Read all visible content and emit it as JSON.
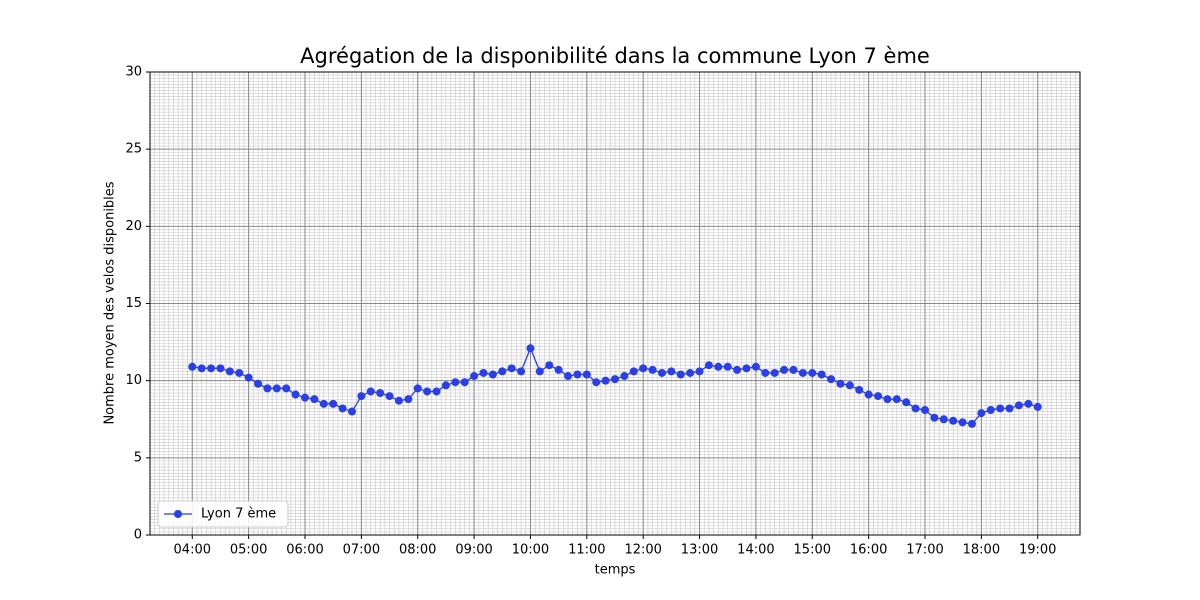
{
  "chart_data": {
    "type": "line",
    "title": "Agrégation de la disponibilité dans la commune Lyon 7 ème",
    "x_label": "temps",
    "y_label": "Nombre moyen des velos disponibles",
    "x": [
      "04:00",
      "04:10",
      "04:20",
      "04:30",
      "04:40",
      "04:50",
      "05:00",
      "05:10",
      "05:20",
      "05:30",
      "05:40",
      "05:50",
      "06:00",
      "06:10",
      "06:20",
      "06:30",
      "06:40",
      "06:50",
      "07:00",
      "07:10",
      "07:20",
      "07:30",
      "07:40",
      "07:50",
      "08:00",
      "08:10",
      "08:20",
      "08:30",
      "08:40",
      "08:50",
      "09:00",
      "09:10",
      "09:20",
      "09:30",
      "09:40",
      "09:50",
      "10:00",
      "10:10",
      "10:20",
      "10:30",
      "10:40",
      "10:50",
      "11:00",
      "11:10",
      "11:20",
      "11:30",
      "11:40",
      "11:50",
      "12:00",
      "12:10",
      "12:20",
      "12:30",
      "12:40",
      "12:50",
      "13:00",
      "13:10",
      "13:20",
      "13:30",
      "13:40",
      "13:50",
      "14:00",
      "14:10",
      "14:20",
      "14:30",
      "14:40",
      "14:50",
      "15:00",
      "15:10",
      "15:20",
      "15:30",
      "15:40",
      "15:50",
      "16:00",
      "16:10",
      "16:20",
      "16:30",
      "16:40",
      "16:50",
      "17:00",
      "17:10",
      "17:20",
      "17:30",
      "17:40",
      "17:50",
      "18:00",
      "18:10",
      "18:20",
      "18:30",
      "18:40",
      "18:50",
      "19:00"
    ],
    "series": [
      {
        "name": "Lyon 7 ème",
        "color": "#2a3fe6",
        "values": [
          10.9,
          10.8,
          10.8,
          10.8,
          10.6,
          10.5,
          10.2,
          9.8,
          9.5,
          9.5,
          9.5,
          9.1,
          8.9,
          8.8,
          8.5,
          8.5,
          8.2,
          8.0,
          9.0,
          9.3,
          9.2,
          9.0,
          8.7,
          8.8,
          9.5,
          9.3,
          9.3,
          9.7,
          9.9,
          9.9,
          10.3,
          10.5,
          10.4,
          10.6,
          10.8,
          10.6,
          12.1,
          10.6,
          11.0,
          10.7,
          10.3,
          10.4,
          10.4,
          9.9,
          10.0,
          10.1,
          10.3,
          10.6,
          10.8,
          10.7,
          10.5,
          10.6,
          10.4,
          10.5,
          10.6,
          11.0,
          10.9,
          10.9,
          10.7,
          10.8,
          10.9,
          10.5,
          10.5,
          10.7,
          10.7,
          10.5,
          10.5,
          10.4,
          10.1,
          9.8,
          9.7,
          9.4,
          9.1,
          9.0,
          8.8,
          8.8,
          8.6,
          8.2,
          8.1,
          7.6,
          7.5,
          7.4,
          7.3,
          7.2,
          7.9,
          8.1,
          8.2,
          8.2,
          8.4,
          8.5,
          8.3
        ]
      }
    ],
    "xlim": [
      "03:15",
      "19:45"
    ],
    "xticks": [
      "04:00",
      "05:00",
      "06:00",
      "07:00",
      "08:00",
      "09:00",
      "10:00",
      "11:00",
      "12:00",
      "13:00",
      "14:00",
      "15:00",
      "16:00",
      "17:00",
      "18:00",
      "19:00"
    ],
    "ylim": [
      0,
      30
    ],
    "yticks": [
      0,
      5,
      10,
      15,
      20,
      25,
      30
    ],
    "grid": true,
    "minor_grid": true,
    "legend": "lower left"
  }
}
